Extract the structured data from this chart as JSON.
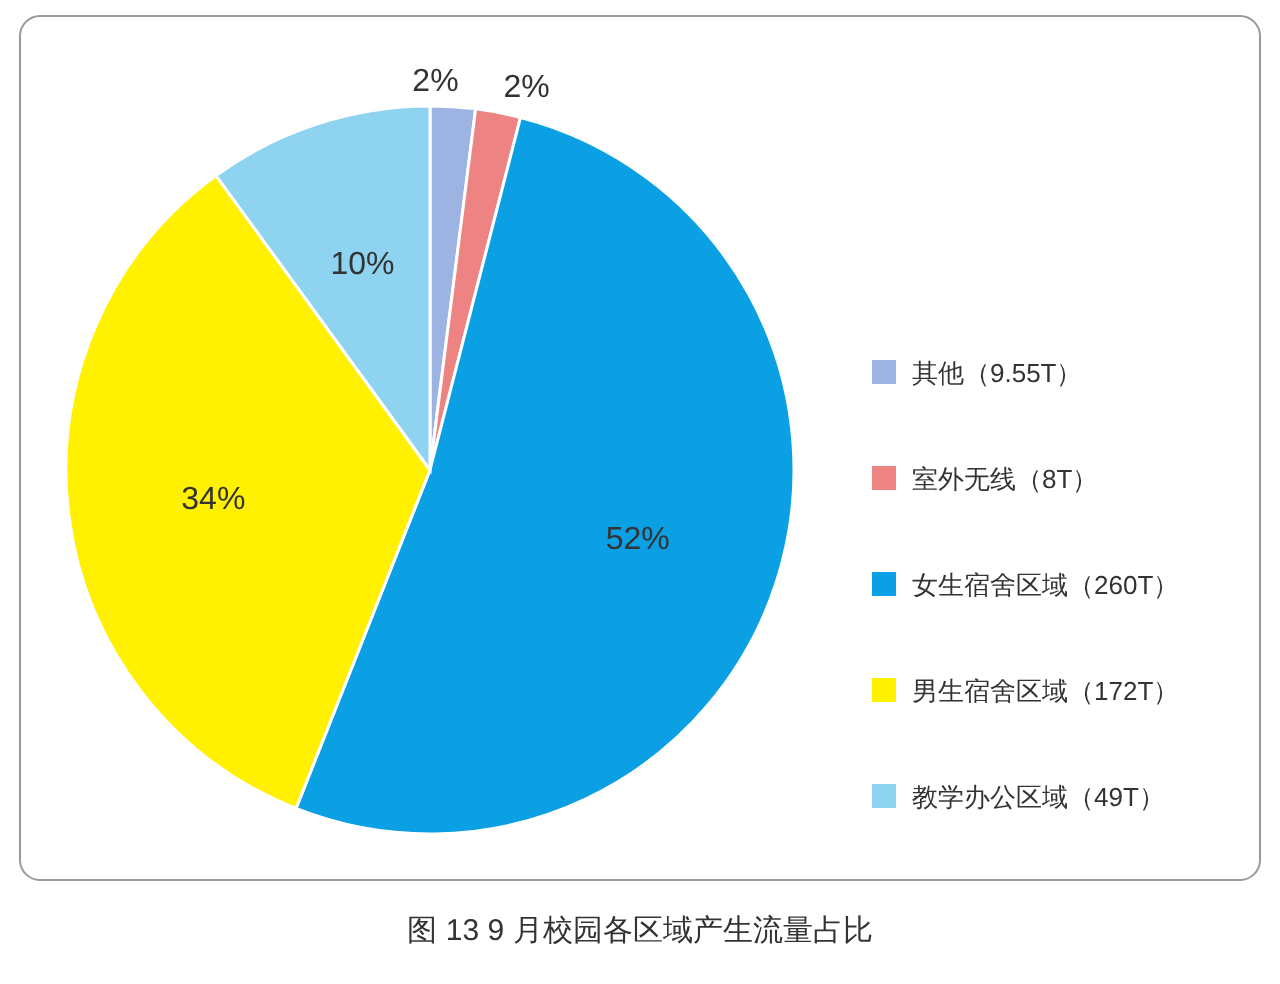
{
  "chart_data": {
    "type": "pie",
    "title": "图 13 9 月校园各区域产生流量占比",
    "categories": [
      "其他（9.55T）",
      "室外无线（8T）",
      "女生宿舍区域（260T）",
      "男生宿舍区域（172T）",
      "教学办公区域（49T）"
    ],
    "values": [
      2,
      2,
      52,
      34,
      10
    ],
    "value_labels": [
      "2%",
      "2%",
      "52%",
      "34%",
      "10%"
    ],
    "colors": [
      "#9db4e2",
      "#ee8383",
      "#0ba0e4",
      "#fff100",
      "#8ed3f0"
    ],
    "legend": "right"
  }
}
